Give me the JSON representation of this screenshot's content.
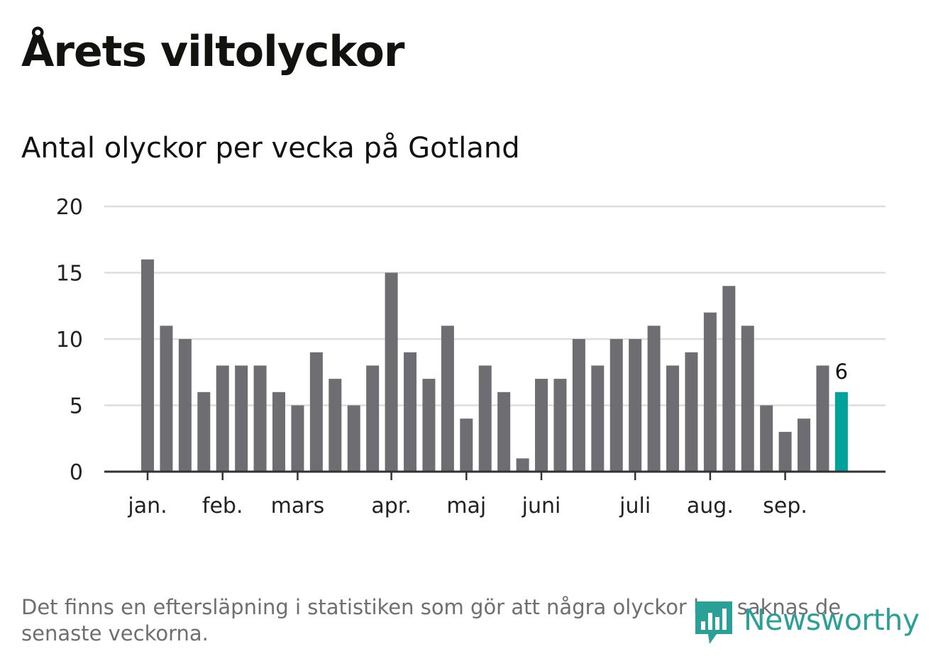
{
  "title": "Årets viltolyckor",
  "subtitle": "Antal olyckor per vecka på Gotland",
  "note": "Det finns en eftersläpning i statistiken som gör att några olyckor kan saknas de senaste veckorna.",
  "logo": {
    "text": "Newsworthy",
    "icon": "newsworthy-bar-chart-icon"
  },
  "colors": {
    "bar": "#6d6d72",
    "highlight": "#00a29a",
    "grid": "#dddddd",
    "axis": "#333333"
  },
  "chart_data": {
    "type": "bar",
    "values": [
      16,
      11,
      10,
      6,
      8,
      8,
      8,
      6,
      5,
      9,
      7,
      5,
      8,
      15,
      9,
      7,
      11,
      4,
      8,
      6,
      1,
      7,
      7,
      10,
      8,
      10,
      10,
      11,
      8,
      9,
      12,
      14,
      11,
      5,
      3,
      4,
      8,
      6
    ],
    "highlight_index": 37,
    "highlight_label": "6",
    "ylim": [
      0,
      20
    ],
    "yticks": [
      0,
      5,
      10,
      15,
      20
    ],
    "month_ticks": [
      {
        "label": "jan.",
        "bar": 0
      },
      {
        "label": "feb.",
        "bar": 4
      },
      {
        "label": "mars",
        "bar": 8
      },
      {
        "label": "apr.",
        "bar": 13
      },
      {
        "label": "maj",
        "bar": 17
      },
      {
        "label": "juni",
        "bar": 21
      },
      {
        "label": "juli",
        "bar": 26
      },
      {
        "label": "aug.",
        "bar": 30
      },
      {
        "label": "sep.",
        "bar": 34
      }
    ],
    "grid": true,
    "xlabel": "",
    "ylabel": ""
  }
}
